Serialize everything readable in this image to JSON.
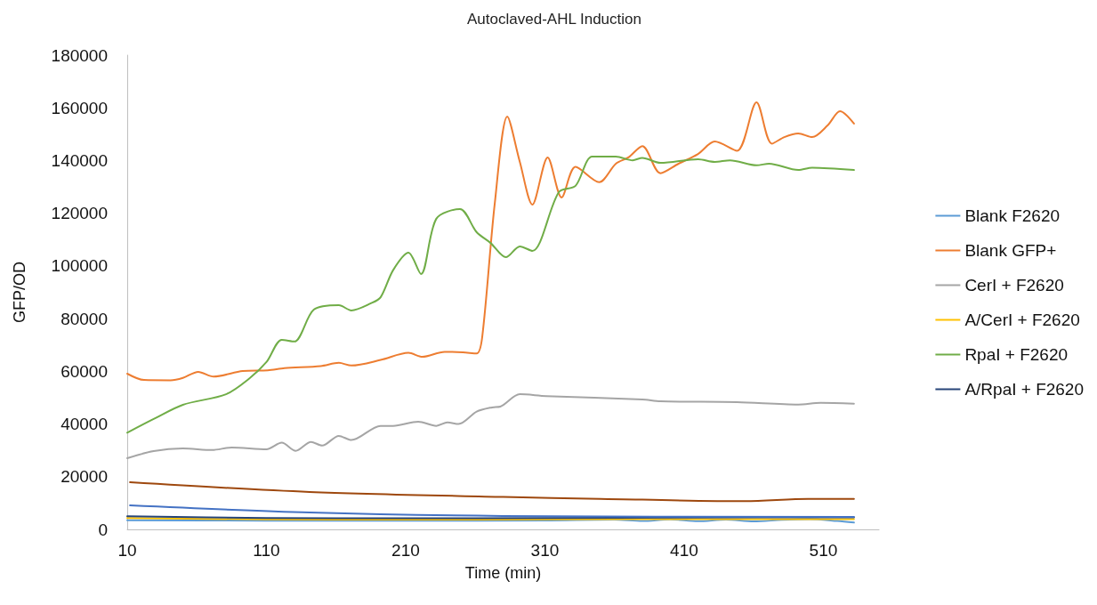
{
  "chart_data": {
    "type": "line",
    "title": "Autoclaved-AHL Induction",
    "xlabel": "Time (min)",
    "ylabel": "GFP/OD",
    "xlim": [
      10,
      550
    ],
    "xticks": [
      10,
      110,
      210,
      310,
      410,
      510
    ],
    "ylim": [
      0,
      180000
    ],
    "yticks": [
      0,
      20000,
      40000,
      60000,
      80000,
      100000,
      120000,
      140000,
      160000,
      180000
    ],
    "legend": "right",
    "marker": "none",
    "line_style": "solid",
    "series": [
      {
        "name": "Blank F2620",
        "color": "#5b9bd5",
        "x": [
          10,
          110,
          210,
          310,
          360,
          380,
          400,
          420,
          440,
          460,
          480,
          500,
          520,
          532
        ],
        "values": [
          3500,
          3300,
          3300,
          3400,
          3700,
          3200,
          3800,
          3100,
          3700,
          3000,
          3600,
          3900,
          3200,
          2600
        ]
      },
      {
        "name": "Blank GFP+",
        "color": "#ed7d31",
        "x": [
          10,
          22,
          41,
          50,
          61,
          72,
          93,
          111,
          123,
          149,
          162,
          171,
          192,
          212,
          222,
          238,
          251,
          261,
          265,
          274,
          283,
          292,
          301,
          312,
          322,
          332,
          349,
          361,
          370,
          380,
          393,
          406,
          420,
          432,
          448,
          462,
          473,
          482,
          492,
          502,
          513,
          522,
          532
        ],
        "values": [
          59100,
          56700,
          56600,
          57500,
          59800,
          58000,
          60100,
          60400,
          61200,
          62000,
          63200,
          62200,
          64300,
          67000,
          65500,
          67400,
          67200,
          66800,
          73100,
          123700,
          156700,
          139500,
          123300,
          141200,
          126000,
          137600,
          131800,
          138800,
          141200,
          145500,
          135200,
          138800,
          142500,
          147200,
          143700,
          162100,
          146400,
          148900,
          150300,
          148900,
          153300,
          158700,
          154000
        ]
      },
      {
        "name": "CerI + F2620",
        "color": "#a5a5a5",
        "x": [
          10,
          29,
          50,
          71,
          85,
          110,
          121,
          131,
          142,
          150,
          162,
          171,
          192,
          201,
          219,
          232,
          240,
          248,
          261,
          272,
          278,
          292,
          311,
          380,
          393,
          448,
          492,
          508,
          532
        ],
        "values": [
          27000,
          29700,
          30700,
          30100,
          31100,
          30400,
          32900,
          29800,
          33200,
          31800,
          35500,
          33900,
          39300,
          39300,
          40900,
          39300,
          40600,
          40000,
          44700,
          46300,
          46600,
          51300,
          50600,
          49300,
          48600,
          48300,
          47400,
          48000,
          47700
        ]
      },
      {
        "name": "A/CerI + F2620",
        "color": "#ffc000",
        "x": [
          10,
          110,
          210,
          310,
          410,
          532
        ],
        "values": [
          4300,
          3800,
          3700,
          3800,
          3900,
          3900
        ]
      },
      {
        "name": "RpaI + F2620",
        "color": "#70ad47",
        "x": [
          10,
          29,
          50,
          81,
          98,
          110,
          121,
          130,
          144,
          162,
          171,
          185,
          192,
          201,
          212,
          221,
          232,
          249,
          261,
          271,
          282,
          292,
          301,
          320,
          332,
          344,
          361,
          373,
          380,
          393,
          420,
          432,
          443,
          462,
          471,
          492,
          502,
          532
        ],
        "values": [
          36700,
          41900,
          47300,
          51300,
          57400,
          63500,
          71900,
          71300,
          83400,
          85100,
          83100,
          85800,
          88100,
          98400,
          105000,
          96900,
          117900,
          121600,
          112800,
          108700,
          103300,
          107400,
          105700,
          128000,
          130400,
          141500,
          141500,
          140100,
          141000,
          139100,
          140500,
          139500,
          140100,
          138200,
          138800,
          136400,
          137300,
          136400
        ]
      },
      {
        "name": "A/RpaI + F2620",
        "color": "#264478",
        "x": [
          10,
          110,
          210,
          310,
          410,
          532
        ],
        "values": [
          5000,
          4300,
          4200,
          4300,
          4500,
          4600
        ]
      },
      {
        "color": "#9e480e",
        "x": [
          12,
          141,
          280,
          350,
          454,
          499,
          532
        ],
        "values": [
          17900,
          14200,
          12300,
          11600,
          10700,
          11600,
          11600
        ]
      },
      {
        "color": "#4472c4",
        "x": [
          12,
          141,
          280,
          532
        ],
        "values": [
          9100,
          6400,
          5100,
          4700
        ]
      }
    ]
  }
}
